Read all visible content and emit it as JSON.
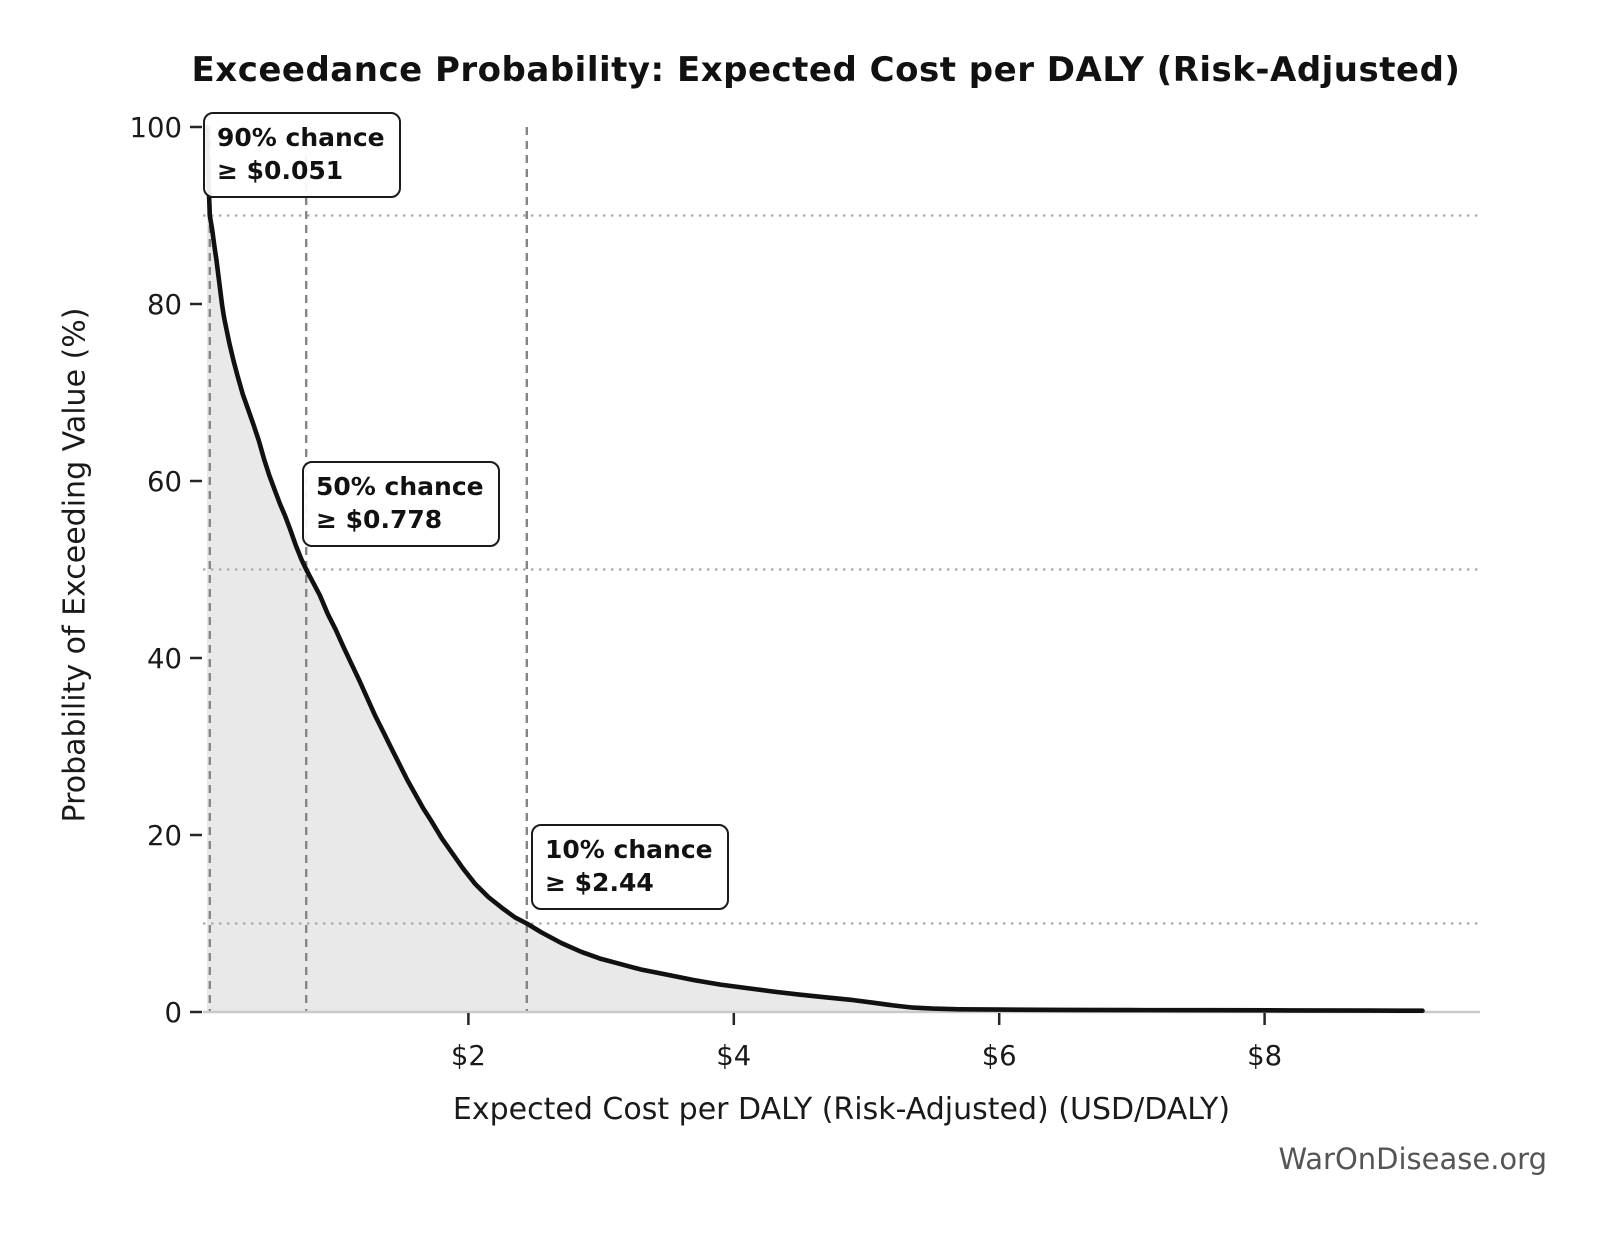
{
  "watermark": "WarOnDisease.org",
  "chart_data": {
    "type": "line",
    "title": "Exceedance Probability: Expected Cost per DALY (Risk-Adjusted)",
    "xlabel": "Expected Cost per DALY (Risk-Adjusted) (USD/DALY)",
    "ylabel": "Probability of Exceeding Value (%)",
    "xlim": [
      0,
      9.6
    ],
    "ylim": [
      0,
      100
    ],
    "grid": "quantile guides only",
    "legend": "none",
    "x_ticks": [
      {
        "value": 2,
        "label": "$2"
      },
      {
        "value": 4,
        "label": "$4"
      },
      {
        "value": 6,
        "label": "$6"
      },
      {
        "value": 8,
        "label": "$8"
      }
    ],
    "y_ticks": [
      {
        "value": 0,
        "label": "0"
      },
      {
        "value": 20,
        "label": "20"
      },
      {
        "value": 40,
        "label": "40"
      },
      {
        "value": 60,
        "label": "60"
      },
      {
        "value": 80,
        "label": "80"
      },
      {
        "value": 100,
        "label": "100"
      }
    ],
    "quantiles": [
      {
        "probability_pct": 90,
        "value_usd": 0.051,
        "label_line1": "90% chance",
        "label_line2": "≥ $0.051"
      },
      {
        "probability_pct": 50,
        "value_usd": 0.778,
        "label_line1": "50% chance",
        "label_line2": "≥ $0.778"
      },
      {
        "probability_pct": 10,
        "value_usd": 2.44,
        "label_line1": "10% chance",
        "label_line2": "≥ $2.44"
      }
    ],
    "series": [
      {
        "name": "Exceedance probability curve",
        "points": [
          [
            0.03,
            100
          ],
          [
            0.033,
            98.2
          ],
          [
            0.036,
            96.5
          ],
          [
            0.04,
            94.6
          ],
          [
            0.044,
            92.9
          ],
          [
            0.048,
            91.3
          ],
          [
            0.051,
            90.0
          ],
          [
            0.06,
            89.2
          ],
          [
            0.07,
            88.3
          ],
          [
            0.085,
            86.6
          ],
          [
            0.1,
            85.1
          ],
          [
            0.115,
            83.3
          ],
          [
            0.13,
            81.5
          ],
          [
            0.145,
            79.8
          ],
          [
            0.16,
            78.4
          ],
          [
            0.18,
            76.9
          ],
          [
            0.2,
            75.5
          ],
          [
            0.23,
            73.6
          ],
          [
            0.26,
            71.9
          ],
          [
            0.3,
            69.8
          ],
          [
            0.34,
            68.1
          ],
          [
            0.38,
            66.4
          ],
          [
            0.42,
            64.6
          ],
          [
            0.46,
            62.5
          ],
          [
            0.5,
            60.6
          ],
          [
            0.54,
            59.0
          ],
          [
            0.58,
            57.4
          ],
          [
            0.62,
            56.0
          ],
          [
            0.66,
            54.4
          ],
          [
            0.7,
            52.7
          ],
          [
            0.74,
            51.2
          ],
          [
            0.778,
            50.0
          ],
          [
            0.82,
            48.8
          ],
          [
            0.88,
            47.1
          ],
          [
            0.94,
            45.0
          ],
          [
            1.0,
            43.2
          ],
          [
            1.06,
            41.2
          ],
          [
            1.12,
            39.3
          ],
          [
            1.18,
            37.4
          ],
          [
            1.24,
            35.4
          ],
          [
            1.3,
            33.4
          ],
          [
            1.36,
            31.6
          ],
          [
            1.42,
            29.8
          ],
          [
            1.48,
            28.0
          ],
          [
            1.54,
            26.2
          ],
          [
            1.6,
            24.6
          ],
          [
            1.66,
            23.0
          ],
          [
            1.72,
            21.6
          ],
          [
            1.8,
            19.6
          ],
          [
            1.88,
            17.9
          ],
          [
            1.96,
            16.2
          ],
          [
            2.05,
            14.5
          ],
          [
            2.15,
            13.0
          ],
          [
            2.25,
            11.8
          ],
          [
            2.35,
            10.7
          ],
          [
            2.44,
            10.0
          ],
          [
            2.55,
            9.0
          ],
          [
            2.7,
            7.8
          ],
          [
            2.85,
            6.8
          ],
          [
            3.0,
            6.0
          ],
          [
            3.15,
            5.4
          ],
          [
            3.3,
            4.8
          ],
          [
            3.5,
            4.2
          ],
          [
            3.7,
            3.6
          ],
          [
            3.9,
            3.1
          ],
          [
            4.1,
            2.7
          ],
          [
            4.3,
            2.3
          ],
          [
            4.5,
            1.95
          ],
          [
            4.7,
            1.65
          ],
          [
            4.9,
            1.35
          ],
          [
            5.05,
            1.05
          ],
          [
            5.2,
            0.75
          ],
          [
            5.35,
            0.5
          ],
          [
            5.5,
            0.38
          ],
          [
            5.7,
            0.3
          ],
          [
            6.0,
            0.27
          ],
          [
            6.5,
            0.24
          ],
          [
            7.0,
            0.22
          ],
          [
            7.6,
            0.2
          ],
          [
            8.2,
            0.18
          ],
          [
            8.8,
            0.16
          ],
          [
            9.19,
            0.15
          ]
        ]
      }
    ],
    "colors": {
      "curve": "#111111",
      "fill_under_curve": "#e9e9e9",
      "quantile_dashed_line": "#858585",
      "dotted_gridline": "#aaaaaa",
      "axis_line": "#c9c9c9",
      "tick_mark": "#262626",
      "tick_label": "#1a1a1a",
      "watermark": "#555555"
    }
  }
}
